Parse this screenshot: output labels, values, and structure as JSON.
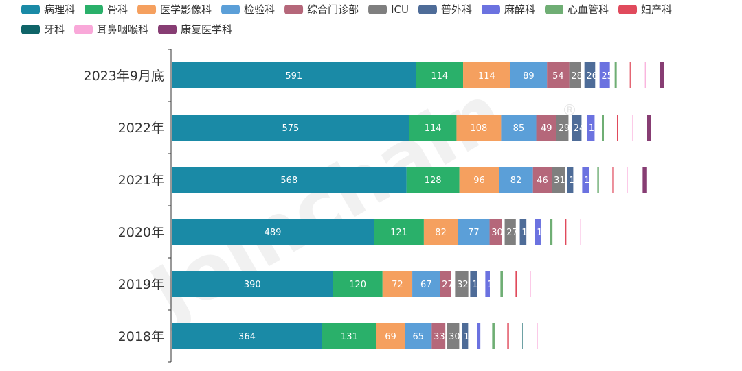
{
  "chart_data": {
    "type": "bar",
    "orientation": "horizontal",
    "stacked": true,
    "watermark": "Joinchain",
    "watermark_mark": "®",
    "categories": [
      "2023年9月底",
      "2022年",
      "2021年",
      "2020年",
      "2019年",
      "2018年"
    ],
    "series": [
      {
        "name": "病理科",
        "color": "#1a8aa6",
        "values": [
          591,
          575,
          568,
          489,
          390,
          364
        ]
      },
      {
        "name": "骨科",
        "color": "#2ab06a",
        "values": [
          114,
          114,
          128,
          121,
          120,
          131
        ]
      },
      {
        "name": "医学影像科",
        "color": "#f5a05f",
        "values": [
          114,
          108,
          96,
          82,
          72,
          69
        ]
      },
      {
        "name": "检验科",
        "color": "#5b9fd8",
        "values": [
          89,
          85,
          82,
          77,
          67,
          65
        ]
      },
      {
        "name": "综合门诊部",
        "color": "#b5677a",
        "values": [
          54,
          49,
          46,
          30,
          27,
          33
        ]
      },
      {
        "name": "ICU",
        "color": "#7f7f7f",
        "values": [
          28,
          29,
          31,
          27,
          32,
          30
        ]
      },
      {
        "name": "普外科",
        "color": "#4e6c98",
        "values": [
          26,
          24,
          15,
          16,
          16,
          15
        ]
      },
      {
        "name": "麻醉科",
        "color": "#6b72e0",
        "values": [
          25,
          19,
          16,
          14,
          11,
          8
        ]
      },
      {
        "name": "心血管科",
        "color": "#6fae74",
        "values": [
          5,
          5,
          4,
          6,
          6,
          6
        ]
      },
      {
        "name": "妇产科",
        "color": "#e04a5c",
        "values": [
          2,
          2,
          2,
          3,
          4,
          4
        ]
      },
      {
        "name": "牙科",
        "color": "#0f6468",
        "values": [
          null,
          null,
          null,
          null,
          null,
          1
        ]
      },
      {
        "name": "耳鼻咽喉科",
        "color": "#f9a8d9",
        "values": [
          2,
          1,
          1,
          1,
          1,
          1
        ]
      },
      {
        "name": "康复医学科",
        "color": "#873d73",
        "values": [
          9,
          9,
          9,
          null,
          null,
          null
        ]
      }
    ],
    "xlim": [
      0,
      1245
    ]
  }
}
